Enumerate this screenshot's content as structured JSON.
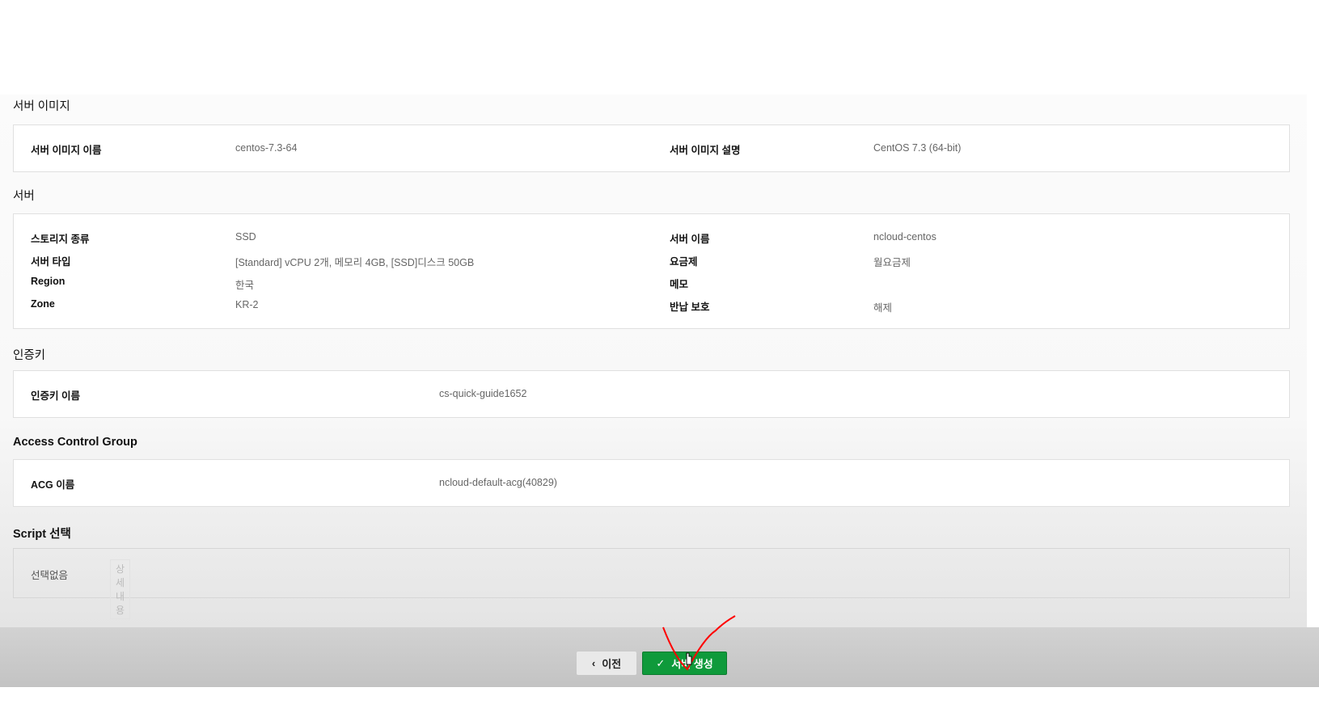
{
  "sections": {
    "image": {
      "title": "서버 이미지",
      "rows": [
        {
          "label": "서버 이미지 이름",
          "value": "centos-7.3-64",
          "label2": "서버 이미지 설명",
          "value2": "CentOS 7.3 (64-bit)"
        }
      ]
    },
    "server": {
      "title": "서버",
      "rows": [
        {
          "label": "스토리지 종류",
          "value": "SSD",
          "label2": "서버 이름",
          "value2": "ncloud-centos"
        },
        {
          "label": "서버 타입",
          "value": "[Standard] vCPU 2개, 메모리 4GB, [SSD]디스크 50GB",
          "label2": "요금제",
          "value2": "월요금제"
        },
        {
          "label": "Region",
          "value": "한국",
          "label2": "메모",
          "value2": ""
        },
        {
          "label": "Zone",
          "value": "KR-2",
          "label2": "반납 보호",
          "value2": "해제"
        }
      ]
    },
    "authkey": {
      "title": "인증키",
      "label": "인증키 이름",
      "value": "cs-quick-guide1652"
    },
    "acg": {
      "title": "Access Control Group",
      "label": "ACG 이름",
      "value": "ncloud-default-acg(40829)"
    },
    "script": {
      "title": "Script 선택",
      "value": "선택없음",
      "detail_button": "상세내용"
    }
  },
  "footer": {
    "prev_label": "이전",
    "create_label": "서버 생성"
  },
  "colors": {
    "primary": "#0f9a3b",
    "annotation": "#ff0000"
  }
}
